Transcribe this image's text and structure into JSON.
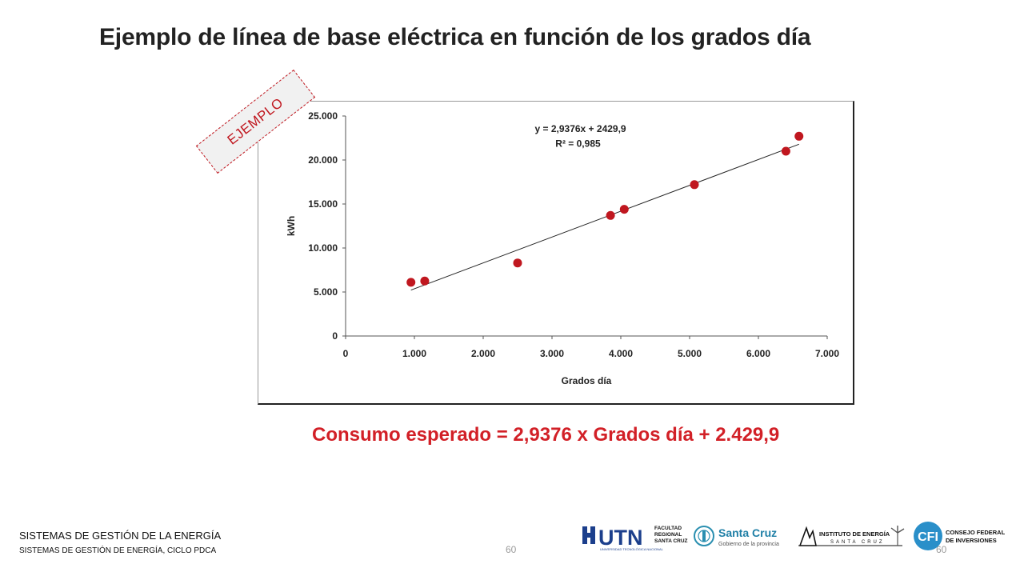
{
  "slide": {
    "title": "Ejemplo de línea de base eléctrica en función de los grados día",
    "stamp_label": "EJEMPLO",
    "equation_caption": "Consumo esperado = 2,9376 x Grados día + 2.429,9"
  },
  "footer": {
    "title": "SISTEMAS DE GESTIÓN DE LA ENERGÍA",
    "subtitle": "SISTEMAS DE GESTIÓN DE ENERGÍA, CICLO PDCA",
    "page_number_center": "60",
    "page_number_right": "60"
  },
  "logos": {
    "utn": {
      "wordmark": "UTN",
      "line1": "FACULTAD",
      "line2": "REGIONAL",
      "line3": "SANTA CRUZ",
      "tagline": "UNIVERSIDAD TECNOLÓGICA NACIONAL"
    },
    "santa_cruz": {
      "name": "Santa Cruz",
      "tagline": "Gobierno de la provincia"
    },
    "instituto": {
      "name": "INSTITUTO DE ENERGÍA",
      "tagline": "SANTA CRUZ"
    },
    "cfi": {
      "mark": "CFI",
      "line1": "CONSEJO FEDERAL",
      "line2": "DE INVERSIONES"
    }
  },
  "colors": {
    "title": "#222222",
    "point": "#c0171f",
    "caption": "#d22027",
    "stamp": "#c0171f",
    "trendline": "#222222"
  },
  "chart_data": {
    "type": "scatter",
    "xlabel": "Grados día",
    "ylabel": "kWh",
    "xlim": [
      0,
      7000
    ],
    "ylim": [
      0,
      25000
    ],
    "x_ticks": [
      0,
      1000,
      2000,
      3000,
      4000,
      5000,
      6000,
      7000
    ],
    "x_tick_labels": [
      "0",
      "1.000",
      "2.000",
      "3.000",
      "4.000",
      "5.000",
      "6.000",
      "7.000"
    ],
    "y_ticks": [
      0,
      5000,
      10000,
      15000,
      20000,
      25000
    ],
    "y_tick_labels": [
      "0",
      "5.000",
      "10.000",
      "15.000",
      "20.000",
      "25.000"
    ],
    "grid": false,
    "legend": "none",
    "series": [
      {
        "x": [
          950,
          1150,
          2500,
          3850,
          4050,
          5070,
          6400,
          6590
        ],
        "y": [
          6100,
          6250,
          8300,
          13700,
          14400,
          17200,
          21000,
          22700
        ]
      }
    ],
    "trendline": {
      "slope": 2.9376,
      "intercept": 2429.9,
      "x_range": [
        950,
        6590
      ],
      "equation_label": "y = 2,9376x + 2429,9",
      "r2_label": "R² = 0,985"
    }
  }
}
